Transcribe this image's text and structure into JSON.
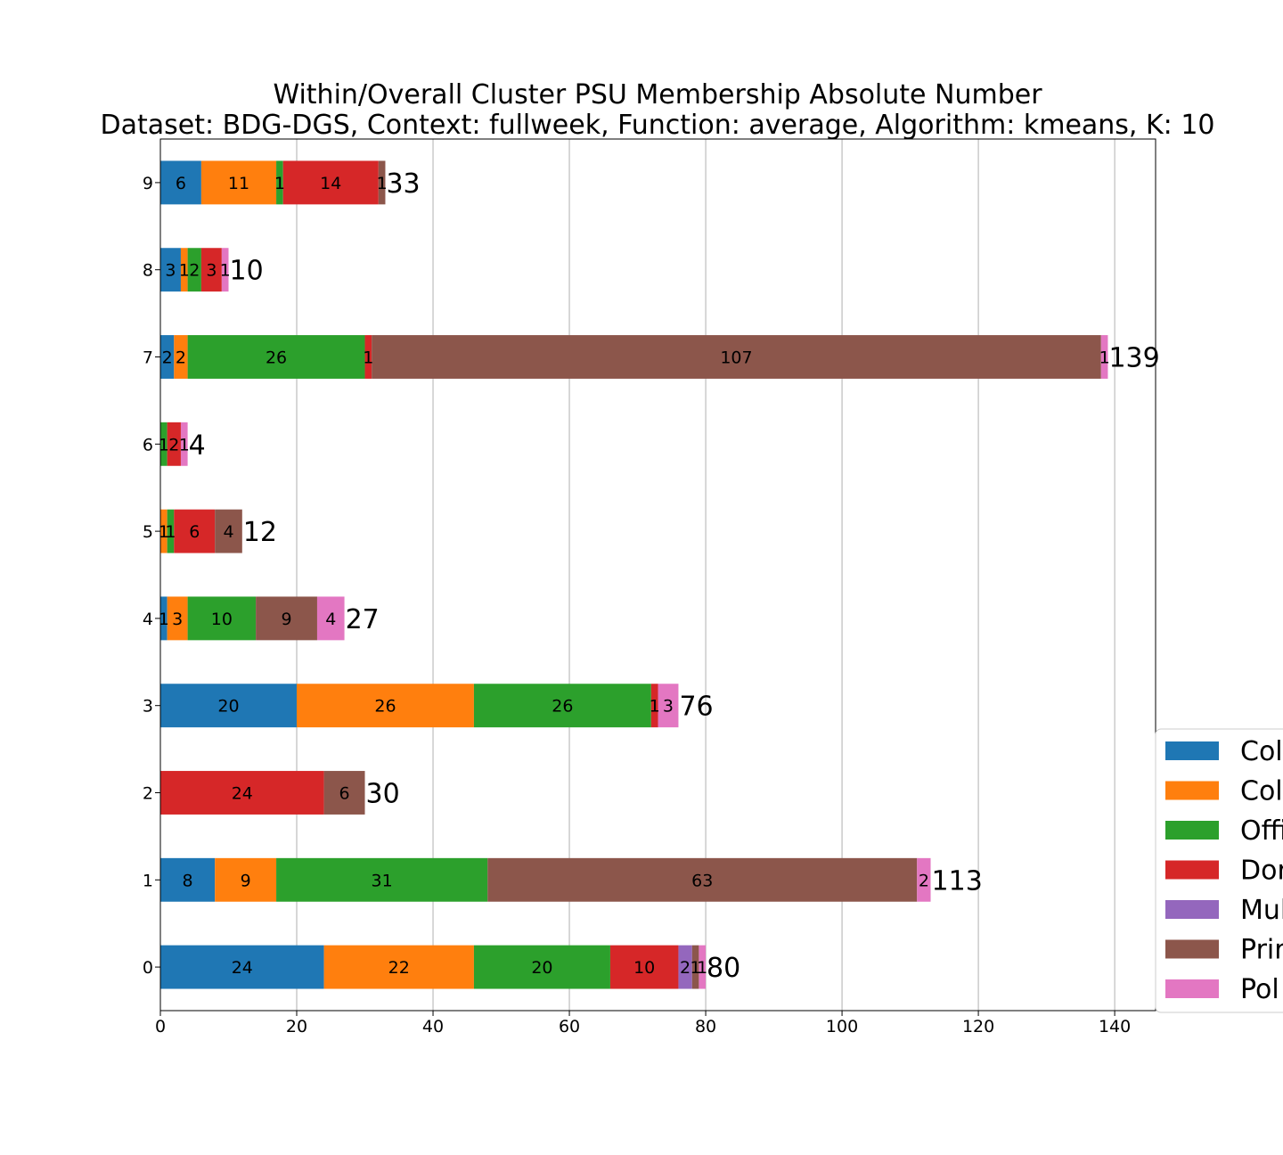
{
  "chart_data": {
    "type": "bar",
    "orientation": "horizontal",
    "stacked": true,
    "title": "Within/Overall Cluster PSU Membership Absolute Number",
    "subtitle": "Dataset: BDG-DGS, Context: fullweek, Function: average, Algorithm: kmeans, K: 10",
    "xlabel": "",
    "ylabel": "",
    "xlim": [
      0,
      146
    ],
    "x_ticks": [
      "0",
      "20",
      "40",
      "60",
      "80",
      "100",
      "120",
      "140"
    ],
    "x_tick_values": [
      0,
      20,
      40,
      60,
      80,
      100,
      120,
      140
    ],
    "categories": [
      "0",
      "1",
      "2",
      "3",
      "4",
      "5",
      "6",
      "7",
      "8",
      "9"
    ],
    "grid": "vertical",
    "legend_position": "right (cut off)",
    "series": [
      {
        "name": "Col",
        "color": "#1f77b4",
        "values": [
          24,
          8,
          0,
          20,
          1,
          0,
          0,
          2,
          3,
          6
        ]
      },
      {
        "name": "Col",
        "color": "#ff7f0e",
        "values": [
          22,
          9,
          0,
          26,
          3,
          1,
          0,
          2,
          1,
          11
        ]
      },
      {
        "name": "Offi",
        "color": "#2ca02c",
        "values": [
          20,
          31,
          0,
          26,
          10,
          1,
          1,
          26,
          2,
          1
        ]
      },
      {
        "name": "Dor",
        "color": "#d62728",
        "values": [
          10,
          0,
          24,
          1,
          0,
          6,
          2,
          1,
          3,
          14
        ]
      },
      {
        "name": "Mul",
        "color": "#9467bd",
        "values": [
          2,
          0,
          0,
          0,
          0,
          0,
          0,
          0,
          0,
          0
        ]
      },
      {
        "name": "Prir",
        "color": "#8c564b",
        "values": [
          1,
          63,
          6,
          0,
          9,
          4,
          0,
          107,
          0,
          1
        ]
      },
      {
        "name": "Pol",
        "color": "#e377c2",
        "values": [
          1,
          2,
          0,
          3,
          4,
          0,
          1,
          1,
          1,
          0
        ]
      }
    ],
    "totals": [
      80,
      113,
      30,
      76,
      27,
      12,
      4,
      139,
      10,
      33
    ]
  }
}
